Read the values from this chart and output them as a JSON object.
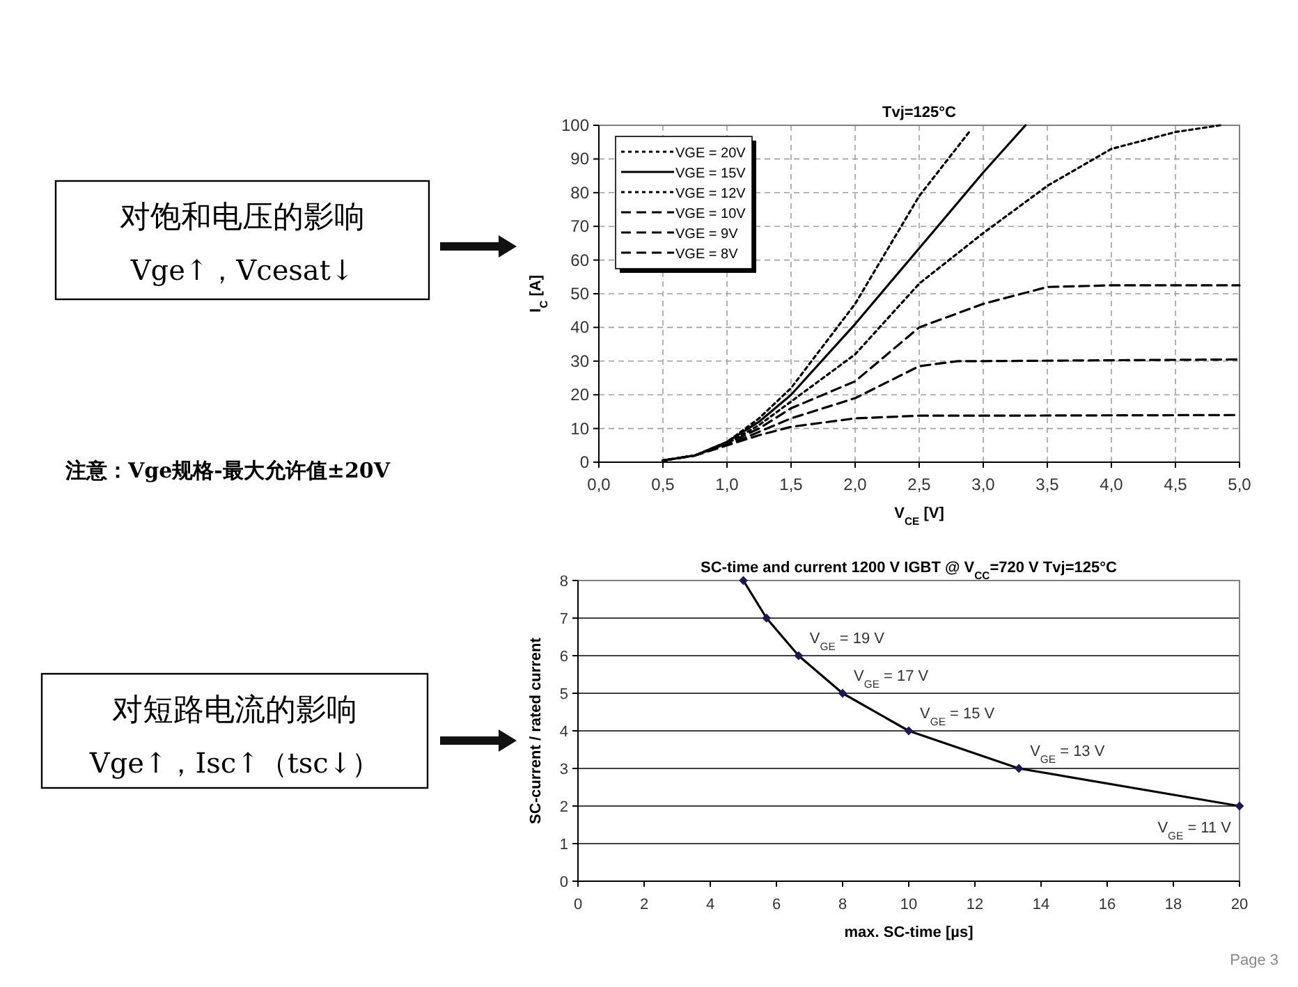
{
  "chart_data": [
    {
      "type": "line",
      "title": "Tvj=125°C",
      "xlabel": "V$_{CE}$ [V]",
      "ylabel": "I$_{C}$ [A]",
      "xlim": [
        0,
        5
      ],
      "ylim": [
        0,
        100
      ],
      "xticks": [
        {
          "value": 0,
          "label": "0,0"
        },
        {
          "value": 0.5,
          "label": "0,5"
        },
        {
          "value": 1,
          "label": "1,0"
        },
        {
          "value": 1.5,
          "label": "1,5"
        },
        {
          "value": 2,
          "label": "2,0"
        },
        {
          "value": 2.5,
          "label": "2,5"
        },
        {
          "value": 3,
          "label": "3,0"
        },
        {
          "value": 3.5,
          "label": "3,5"
        },
        {
          "value": 4,
          "label": "4,0"
        },
        {
          "value": 4.5,
          "label": "4,5"
        },
        {
          "value": 5,
          "label": "5,0"
        }
      ],
      "yticks": [
        0,
        10,
        20,
        30,
        40,
        50,
        60,
        70,
        80,
        90,
        100
      ],
      "grid": true,
      "legend": "top left",
      "series": [
        {
          "name": "VGE = 20V",
          "color": "#000000",
          "line_style": "dotted",
          "x": [
            0.5,
            0.75,
            1.0,
            1.25,
            1.5,
            2.0,
            2.5,
            2.89
          ],
          "values": [
            0.5,
            2,
            6,
            13,
            22,
            47,
            79,
            98
          ]
        },
        {
          "name": "VGE = 15V",
          "color": "#000000",
          "line_style": "solid",
          "x": [
            0.5,
            0.75,
            1.0,
            1.25,
            1.5,
            2.0,
            2.5,
            3.0,
            3.33
          ],
          "values": [
            0.5,
            2,
            6,
            12,
            20,
            41,
            63.5,
            86,
            100
          ]
        },
        {
          "name": "VGE = 12V",
          "color": "#000000",
          "line_style": "dotted",
          "x": [
            0.5,
            0.75,
            1.0,
            1.25,
            1.5,
            2.0,
            2.5,
            3.0,
            3.5,
            4.0,
            4.5,
            4.85
          ],
          "values": [
            0.5,
            2,
            5.5,
            11,
            18,
            32,
            53,
            68,
            82,
            93,
            98,
            100
          ]
        },
        {
          "name": "VGE = 10V",
          "color": "#000000",
          "line_style": "dashed",
          "x": [
            0.5,
            0.75,
            1.0,
            1.25,
            1.5,
            2.0,
            2.5,
            3.0,
            3.5,
            4.0,
            5.0
          ],
          "values": [
            0.5,
            2,
            5.5,
            10,
            16,
            24,
            40,
            47,
            52,
            52.5,
            52.5
          ]
        },
        {
          "name": "VGE = 9V",
          "color": "#000000",
          "line_style": "dashed",
          "x": [
            0.5,
            0.75,
            1.0,
            1.25,
            1.5,
            2.0,
            2.5,
            2.8,
            3.0,
            5.0
          ],
          "values": [
            0.5,
            2,
            5,
            9,
            13,
            19,
            28.5,
            30,
            30,
            30.5
          ]
        },
        {
          "name": "VGE = 8V",
          "color": "#000000",
          "line_style": "dashed",
          "x": [
            0.5,
            0.75,
            1.0,
            1.25,
            1.5,
            2.0,
            2.5,
            3.0,
            5.0
          ],
          "values": [
            0.5,
            2,
            5,
            8,
            10.5,
            13,
            13.8,
            13.8,
            14
          ]
        }
      ],
      "annotations": [
        "对饱和电压的影响",
        "Vge↑，Vcesat↓",
        "注意：Vge规格-最大允许值±20V"
      ]
    },
    {
      "type": "line",
      "title": "SC-time and current 1200 V IGBT @ V$_{CC}$=720 V  Tvj=125°C",
      "xlabel": "max. SC-time [µs]",
      "ylabel": "SC-current / rated current",
      "xlim": [
        0,
        20
      ],
      "ylim": [
        0,
        8
      ],
      "xticks": [
        0,
        2,
        4,
        6,
        8,
        10,
        12,
        14,
        16,
        18,
        20
      ],
      "yticks": [
        0,
        1,
        2,
        3,
        4,
        5,
        6,
        7,
        8
      ],
      "grid": "y",
      "marker": "diamond",
      "series": [
        {
          "color": "#000000",
          "x": [
            5,
            5.7,
            6.67,
            8,
            10,
            13.33,
            20
          ],
          "values": [
            8,
            7,
            6,
            5,
            4,
            3,
            2
          ]
        }
      ],
      "annotations": [
        "对短路电流的影响",
        "Vge↑，Isc↑（tsc↓）",
        "Page 3",
        {
          "text": "V$_{GE}$ = 19 V",
          "x": 6.67,
          "y": 6
        },
        {
          "text": "V$_{GE}$ = 17 V",
          "x": 8,
          "y": 5
        },
        {
          "text": "V$_{GE}$ = 15 V",
          "x": 10,
          "y": 4
        },
        {
          "text": "V$_{GE}$ = 13 V",
          "x": 13.33,
          "y": 3
        },
        {
          "text": "V$_{GE}$ = 11 V",
          "x": 20,
          "y": 2
        }
      ]
    }
  ]
}
